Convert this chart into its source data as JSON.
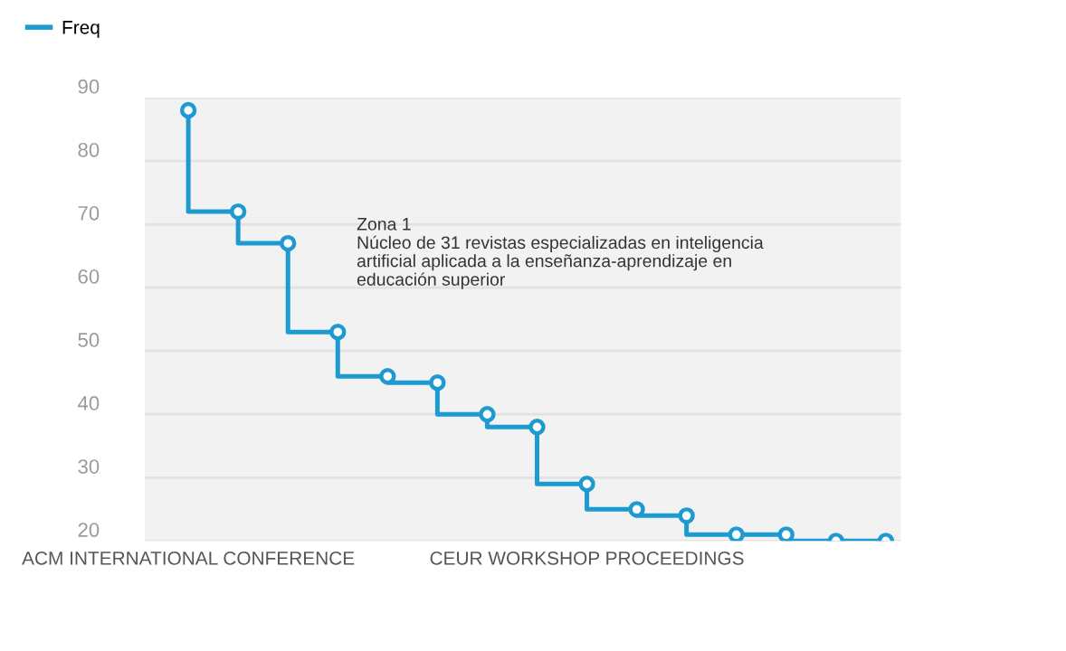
{
  "chart_data": {
    "type": "step",
    "categories": [
      "ACM INTERNATIONAL CONFERENCE",
      null,
      null,
      null,
      null,
      null,
      null,
      null,
      "CEUR WORKSHOP PROCEEDINGS",
      null,
      null,
      null,
      null,
      null,
      null
    ],
    "series": [
      {
        "name": "Freq",
        "color": "#1d9bd1",
        "values": [
          88,
          72,
          67,
          53,
          46,
          45,
          40,
          38,
          29,
          25,
          24,
          21,
          21,
          20,
          20
        ]
      }
    ],
    "ylim": [
      20,
      90
    ],
    "yticks": [
      20,
      30,
      40,
      50,
      60,
      70,
      80,
      90
    ],
    "grid": "y",
    "legend": "top left",
    "marker": "circle",
    "line_style": "solid",
    "annotations": [
      "Zona 1\nNúcleo de 31 revistas especializadas en inteligencia\nartificial aplicada a la enseñanza-aprendizaje en\neducación superior"
    ]
  }
}
